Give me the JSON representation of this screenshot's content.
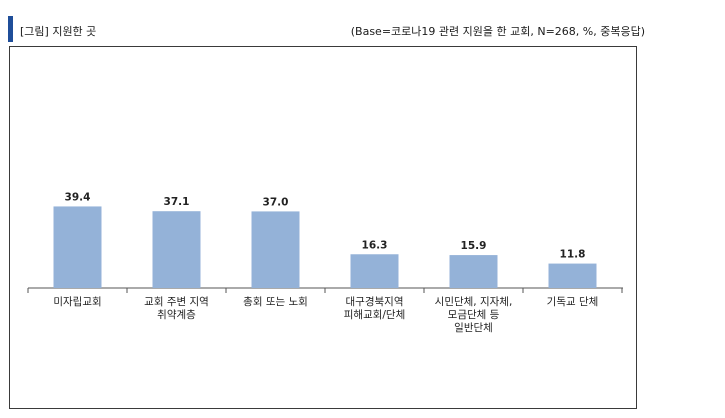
{
  "header": {
    "title": "[그림] 지원한 곳",
    "note": "(Base=코로나19 관련 지원을 한 교회, N=268, %, 중복응답)"
  },
  "chart_data": {
    "type": "bar",
    "categories": [
      [
        "미자립교회"
      ],
      [
        "교회 주변 지역",
        "취약계층"
      ],
      [
        "총회 또는 노회"
      ],
      [
        "대구경북지역",
        "피해교회/단체"
      ],
      [
        "시민단체, 지자체,",
        "모금단체 등",
        "일반단체"
      ],
      [
        "기독교 단체"
      ]
    ],
    "values": [
      39.4,
      37.1,
      37.0,
      16.3,
      15.9,
      11.8
    ],
    "value_labels": [
      "39.4",
      "37.1",
      "37.0",
      "16.3",
      "15.9",
      "11.8"
    ],
    "title": "",
    "xlabel": "",
    "ylabel": "",
    "ylim": [
      0,
      100
    ],
    "grid": false,
    "bar_color": "#94b2d8",
    "axis_color": "#555555"
  }
}
